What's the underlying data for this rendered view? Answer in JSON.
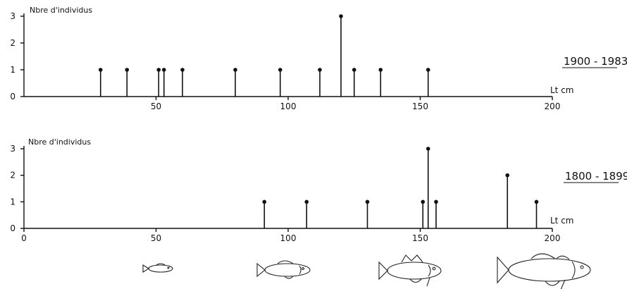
{
  "chart_data": [
    {
      "type": "bar",
      "title": "1900 - 1983",
      "ylabel": "Nbre d'individus",
      "xlabel": "Lt cm",
      "xlim": [
        0,
        200
      ],
      "ylim": [
        0,
        3
      ],
      "xticks": [
        "50",
        "100",
        "150",
        "200"
      ],
      "yticks": [
        "0",
        "1",
        "2",
        "3"
      ],
      "points": [
        {
          "x": 29,
          "y": 1
        },
        {
          "x": 39,
          "y": 1
        },
        {
          "x": 51,
          "y": 1
        },
        {
          "x": 53,
          "y": 1
        },
        {
          "x": 60,
          "y": 1
        },
        {
          "x": 80,
          "y": 1
        },
        {
          "x": 97,
          "y": 1
        },
        {
          "x": 112,
          "y": 1
        },
        {
          "x": 120,
          "y": 3
        },
        {
          "x": 125,
          "y": 1
        },
        {
          "x": 135,
          "y": 1
        },
        {
          "x": 153,
          "y": 1
        }
      ]
    },
    {
      "type": "bar",
      "title": "1800 - 1899",
      "ylabel": "Nbre d'individus",
      "xlabel": "Lt cm",
      "xlim": [
        0,
        200
      ],
      "ylim": [
        0,
        3
      ],
      "xticks": [
        "0",
        "50",
        "100",
        "150",
        "200"
      ],
      "yticks": [
        "0",
        "1",
        "2",
        "3"
      ],
      "points": [
        {
          "x": 91,
          "y": 1
        },
        {
          "x": 107,
          "y": 1
        },
        {
          "x": 130,
          "y": 1
        },
        {
          "x": 151,
          "y": 1
        },
        {
          "x": 153,
          "y": 3
        },
        {
          "x": 156,
          "y": 1
        },
        {
          "x": 183,
          "y": 2
        },
        {
          "x": 194,
          "y": 1
        }
      ]
    }
  ],
  "icons": [
    "small-fish-icon",
    "medium-fish-icon",
    "large-fish-icon",
    "largest-fish-icon"
  ]
}
